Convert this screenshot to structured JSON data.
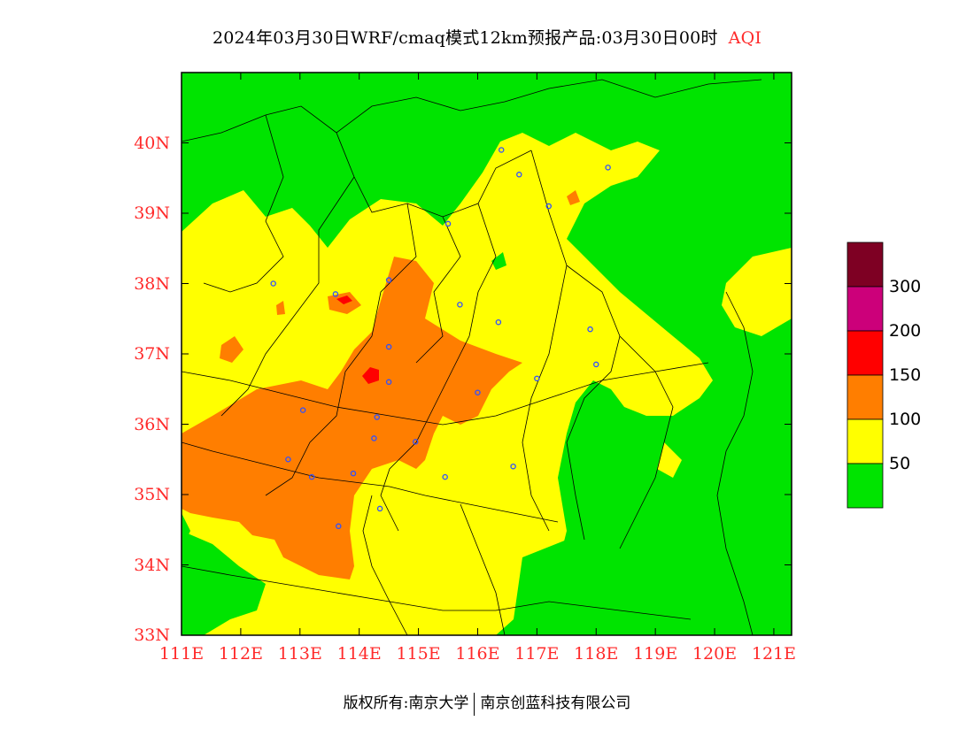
{
  "title": {
    "main": "2024年03月30日WRF/cmaq模式12km预报产品:03月30日00时",
    "variable": "AQI"
  },
  "axes": {
    "lat_ticks": [
      "33N",
      "34N",
      "35N",
      "36N",
      "37N",
      "38N",
      "39N",
      "40N"
    ],
    "lon_ticks": [
      "111E",
      "112E",
      "113E",
      "114E",
      "115E",
      "116E",
      "117E",
      "118E",
      "119E",
      "120E",
      "121E"
    ],
    "lon_range": [
      111,
      121.3
    ],
    "lat_range": [
      33,
      41
    ]
  },
  "legend": {
    "labels": [
      "50",
      "100",
      "150",
      "200",
      "300"
    ],
    "colors": {
      "good": "#00e400",
      "moderate": "#ffff00",
      "unhealthy_sensitive": "#ff7e00",
      "unhealthy": "#ff0000",
      "very_unhealthy": "#cc007a",
      "hazardous": "#7e0023"
    }
  },
  "stations": [
    [
      116.4,
      39.9
    ],
    [
      116.7,
      39.55
    ],
    [
      117.2,
      39.1
    ],
    [
      118.2,
      39.65
    ],
    [
      115.5,
      38.85
    ],
    [
      114.5,
      38.05
    ],
    [
      115.7,
      37.7
    ],
    [
      116.35,
      37.45
    ],
    [
      117.9,
      37.35
    ],
    [
      118.0,
      36.85
    ],
    [
      114.5,
      37.1
    ],
    [
      114.5,
      36.6
    ],
    [
      116.0,
      36.45
    ],
    [
      114.3,
      36.1
    ],
    [
      114.25,
      35.8
    ],
    [
      114.95,
      35.75
    ],
    [
      115.45,
      35.25
    ],
    [
      116.6,
      35.4
    ],
    [
      113.05,
      36.2
    ],
    [
      112.8,
      35.5
    ],
    [
      113.2,
      35.25
    ],
    [
      113.9,
      35.3
    ],
    [
      114.35,
      34.8
    ],
    [
      113.65,
      34.55
    ],
    [
      112.55,
      38.0
    ],
    [
      113.6,
      37.85
    ],
    [
      117.0,
      36.65
    ]
  ],
  "footer": {
    "copyright": "版权所有:南京大学",
    "company": "南京创蓝科技有限公司"
  }
}
